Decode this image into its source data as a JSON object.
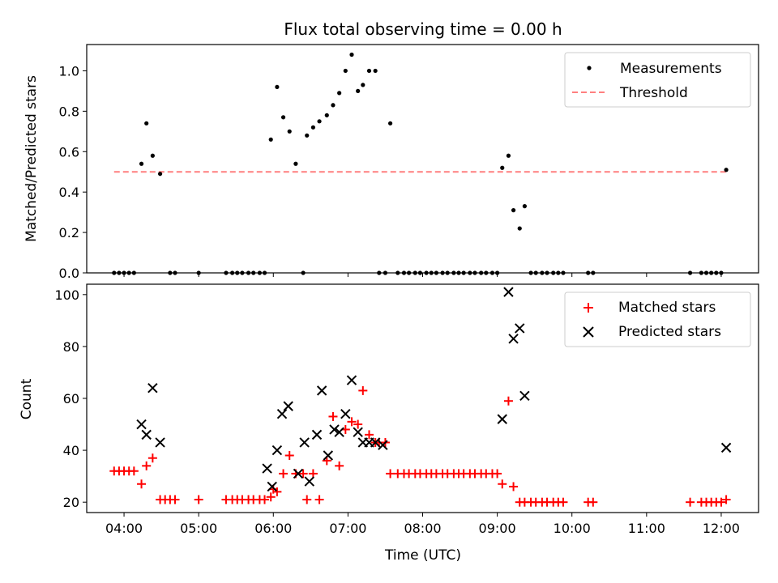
{
  "chart_data": [
    {
      "type": "scatter",
      "title": "Flux total observing time = 0.00 h",
      "xlabel": "",
      "ylabel": "Matched/Predicted stars",
      "xlim": [
        "03:30",
        "12:30"
      ],
      "ylim": [
        0,
        1.13
      ],
      "yticks": [
        "0.0",
        "0.2",
        "0.4",
        "0.6",
        "0.8",
        "1.0"
      ],
      "legend_position": "top-right",
      "legend": [
        "Measurements",
        "Threshold"
      ],
      "threshold": {
        "name": "Threshold",
        "value": 0.5,
        "x_range": [
          "03:52",
          "12:05"
        ],
        "color": "#ff7f7f",
        "style": "dashed"
      },
      "series": [
        {
          "name": "Measurements",
          "color": "#000000",
          "marker": "dot",
          "points": [
            [
              "03:52",
              0
            ],
            [
              "03:56",
              0
            ],
            [
              "04:00",
              0
            ],
            [
              "04:04",
              0
            ],
            [
              "04:08",
              0
            ],
            [
              "04:14",
              0.54
            ],
            [
              "04:18",
              0.74
            ],
            [
              "04:23",
              0.58
            ],
            [
              "04:29",
              0.49
            ],
            [
              "04:37",
              0
            ],
            [
              "04:41",
              0
            ],
            [
              "05:00",
              0
            ],
            [
              "05:22",
              0
            ],
            [
              "05:27",
              0
            ],
            [
              "05:31",
              0
            ],
            [
              "05:35",
              0
            ],
            [
              "05:40",
              0
            ],
            [
              "05:44",
              0
            ],
            [
              "05:49",
              0
            ],
            [
              "05:53",
              0
            ],
            [
              "05:58",
              0.66
            ],
            [
              "06:03",
              0.92
            ],
            [
              "06:08",
              0.77
            ],
            [
              "06:13",
              0.7
            ],
            [
              "06:18",
              0.54
            ],
            [
              "06:24",
              0
            ],
            [
              "06:27",
              0.68
            ],
            [
              "06:32",
              0.72
            ],
            [
              "06:37",
              0.75
            ],
            [
              "06:43",
              0.78
            ],
            [
              "06:48",
              0.83
            ],
            [
              "06:53",
              0.89
            ],
            [
              "06:58",
              1.0
            ],
            [
              "07:03",
              1.08
            ],
            [
              "07:08",
              0.9
            ],
            [
              "07:12",
              0.93
            ],
            [
              "07:17",
              1.0
            ],
            [
              "07:22",
              1.0
            ],
            [
              "07:25",
              0
            ],
            [
              "07:30",
              0
            ],
            [
              "07:34",
              0.74
            ],
            [
              "07:40",
              0
            ],
            [
              "07:45",
              0
            ],
            [
              "07:49",
              0
            ],
            [
              "07:54",
              0
            ],
            [
              "07:58",
              0
            ],
            [
              "08:03",
              0
            ],
            [
              "08:07",
              0
            ],
            [
              "08:11",
              0
            ],
            [
              "08:16",
              0
            ],
            [
              "08:20",
              0
            ],
            [
              "08:25",
              0
            ],
            [
              "08:29",
              0
            ],
            [
              "08:33",
              0
            ],
            [
              "08:38",
              0
            ],
            [
              "08:42",
              0
            ],
            [
              "08:47",
              0
            ],
            [
              "08:51",
              0
            ],
            [
              "08:56",
              0
            ],
            [
              "09:00",
              0
            ],
            [
              "09:04",
              0.52
            ],
            [
              "09:09",
              0.58
            ],
            [
              "09:13",
              0.31
            ],
            [
              "09:18",
              0.22
            ],
            [
              "09:22",
              0.33
            ],
            [
              "09:27",
              0
            ],
            [
              "09:31",
              0
            ],
            [
              "09:36",
              0
            ],
            [
              "09:40",
              0
            ],
            [
              "09:45",
              0
            ],
            [
              "09:49",
              0
            ],
            [
              "09:53",
              0
            ],
            [
              "10:13",
              0
            ],
            [
              "10:17",
              0
            ],
            [
              "11:35",
              0
            ],
            [
              "11:44",
              0
            ],
            [
              "11:48",
              0
            ],
            [
              "11:52",
              0
            ],
            [
              "11:56",
              0
            ],
            [
              "12:00",
              0
            ],
            [
              "12:04",
              0.51
            ]
          ]
        }
      ]
    },
    {
      "type": "scatter",
      "title": "",
      "xlabel": "Time (UTC)",
      "ylabel": "Count",
      "xlim": [
        "03:30",
        "12:30"
      ],
      "ylim": [
        16,
        104
      ],
      "xticks": [
        "04:00",
        "05:00",
        "06:00",
        "07:00",
        "08:00",
        "09:00",
        "10:00",
        "11:00",
        "12:00"
      ],
      "yticks": [
        "20",
        "40",
        "60",
        "80",
        "100"
      ],
      "legend_position": "top-right",
      "legend": [
        "Matched stars",
        "Predicted stars"
      ],
      "series": [
        {
          "name": "Matched stars",
          "color": "#ff0000",
          "marker": "plus",
          "points": [
            [
              "03:52",
              32
            ],
            [
              "03:56",
              32
            ],
            [
              "04:00",
              32
            ],
            [
              "04:04",
              32
            ],
            [
              "04:08",
              32
            ],
            [
              "04:14",
              27
            ],
            [
              "04:18",
              34
            ],
            [
              "04:23",
              37
            ],
            [
              "04:29",
              21
            ],
            [
              "04:33",
              21
            ],
            [
              "04:37",
              21
            ],
            [
              "04:41",
              21
            ],
            [
              "05:00",
              21
            ],
            [
              "05:22",
              21
            ],
            [
              "05:27",
              21
            ],
            [
              "05:31",
              21
            ],
            [
              "05:35",
              21
            ],
            [
              "05:40",
              21
            ],
            [
              "05:44",
              21
            ],
            [
              "05:49",
              21
            ],
            [
              "05:53",
              21
            ],
            [
              "05:58",
              22
            ],
            [
              "06:00",
              25
            ],
            [
              "06:03",
              24
            ],
            [
              "06:08",
              31
            ],
            [
              "06:13",
              38
            ],
            [
              "06:18",
              31
            ],
            [
              "06:24",
              31
            ],
            [
              "06:27",
              21
            ],
            [
              "06:32",
              31
            ],
            [
              "06:37",
              21
            ],
            [
              "06:43",
              36
            ],
            [
              "06:48",
              53
            ],
            [
              "06:53",
              34
            ],
            [
              "06:58",
              48
            ],
            [
              "07:03",
              51
            ],
            [
              "07:08",
              50
            ],
            [
              "07:12",
              63
            ],
            [
              "07:17",
              46
            ],
            [
              "07:22",
              43
            ],
            [
              "07:25",
              43
            ],
            [
              "07:30",
              43
            ],
            [
              "07:34",
              31
            ],
            [
              "07:40",
              31
            ],
            [
              "07:45",
              31
            ],
            [
              "07:49",
              31
            ],
            [
              "07:54",
              31
            ],
            [
              "07:58",
              31
            ],
            [
              "08:03",
              31
            ],
            [
              "08:07",
              31
            ],
            [
              "08:11",
              31
            ],
            [
              "08:16",
              31
            ],
            [
              "08:20",
              31
            ],
            [
              "08:25",
              31
            ],
            [
              "08:29",
              31
            ],
            [
              "08:33",
              31
            ],
            [
              "08:38",
              31
            ],
            [
              "08:42",
              31
            ],
            [
              "08:47",
              31
            ],
            [
              "08:51",
              31
            ],
            [
              "08:56",
              31
            ],
            [
              "09:00",
              31
            ],
            [
              "09:04",
              27
            ],
            [
              "09:09",
              59
            ],
            [
              "09:13",
              26
            ],
            [
              "09:18",
              20
            ],
            [
              "09:22",
              20
            ],
            [
              "09:27",
              20
            ],
            [
              "09:31",
              20
            ],
            [
              "09:36",
              20
            ],
            [
              "09:40",
              20
            ],
            [
              "09:45",
              20
            ],
            [
              "09:49",
              20
            ],
            [
              "09:53",
              20
            ],
            [
              "10:13",
              20
            ],
            [
              "10:17",
              20
            ],
            [
              "11:35",
              20
            ],
            [
              "11:44",
              20
            ],
            [
              "11:48",
              20
            ],
            [
              "11:52",
              20
            ],
            [
              "11:56",
              20
            ],
            [
              "12:00",
              20
            ],
            [
              "12:04",
              21
            ]
          ]
        },
        {
          "name": "Predicted stars",
          "color": "#000000",
          "marker": "x",
          "points": [
            [
              "04:14",
              50
            ],
            [
              "04:18",
              46
            ],
            [
              "04:23",
              64
            ],
            [
              "04:29",
              43
            ],
            [
              "05:55",
              33
            ],
            [
              "05:59",
              26
            ],
            [
              "06:03",
              40
            ],
            [
              "06:07",
              54
            ],
            [
              "06:12",
              57
            ],
            [
              "06:20",
              31
            ],
            [
              "06:25",
              43
            ],
            [
              "06:29",
              28
            ],
            [
              "06:35",
              46
            ],
            [
              "06:39",
              63
            ],
            [
              "06:44",
              38
            ],
            [
              "06:49",
              48
            ],
            [
              "06:53",
              47
            ],
            [
              "06:58",
              54
            ],
            [
              "07:03",
              67
            ],
            [
              "07:08",
              47
            ],
            [
              "07:12",
              43
            ],
            [
              "07:17",
              43
            ],
            [
              "07:22",
              43
            ],
            [
              "07:28",
              42
            ],
            [
              "09:04",
              52
            ],
            [
              "09:09",
              101
            ],
            [
              "09:13",
              83
            ],
            [
              "09:18",
              87
            ],
            [
              "09:22",
              61
            ],
            [
              "12:04",
              41
            ]
          ]
        }
      ]
    }
  ]
}
